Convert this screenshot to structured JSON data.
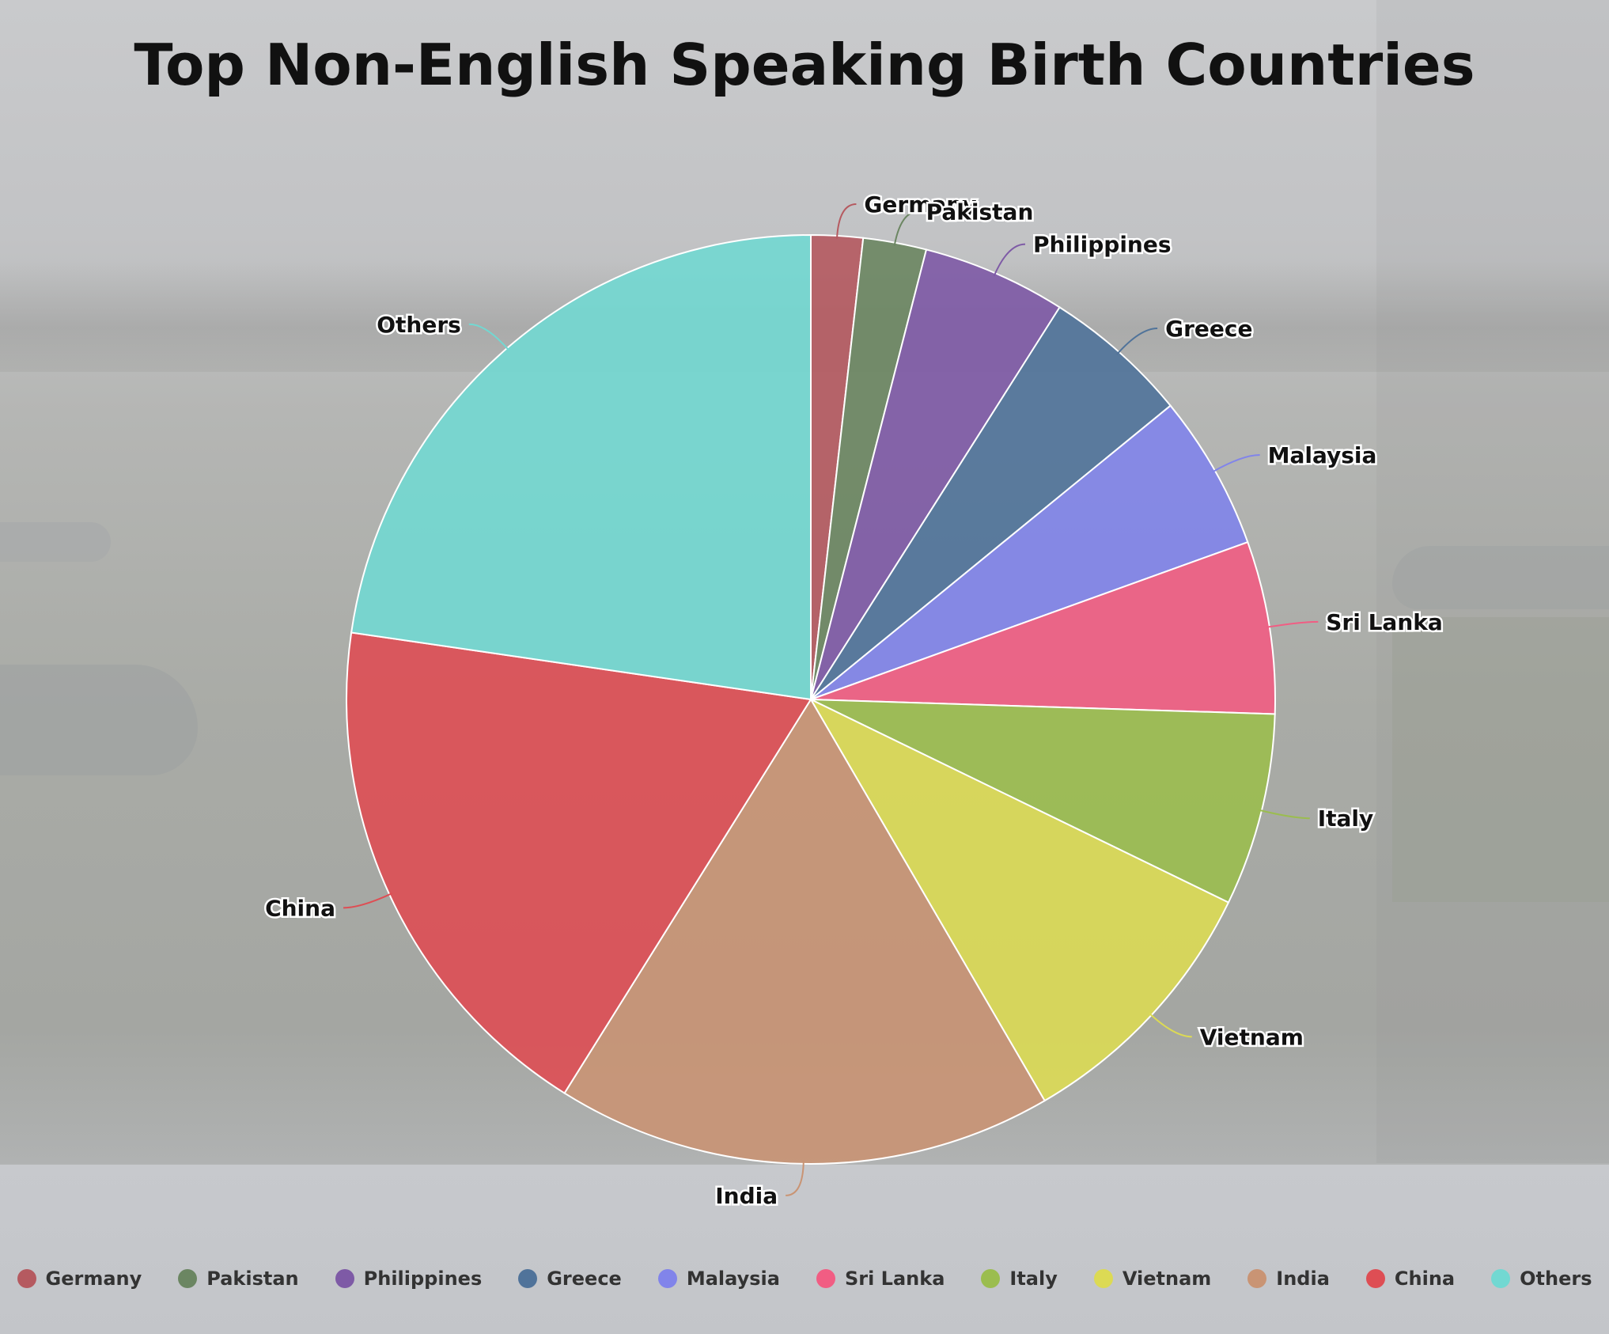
{
  "chart_data": {
    "type": "pie",
    "title": "Top Non-English Speaking Birth Countries",
    "categories": [
      "Germany",
      "Pakistan",
      "Philippines",
      "Greece",
      "Malaysia",
      "Sri Lanka",
      "Italy",
      "Vietnam",
      "India",
      "China",
      "Others"
    ],
    "values": [
      1.8,
      2.2,
      5.0,
      5.1,
      5.4,
      6.0,
      6.7,
      9.4,
      17.3,
      18.4,
      22.7
    ],
    "unit": "percent",
    "start_angle": "12 o'clock",
    "direction": "clockwise",
    "legend_position": "bottom",
    "colors": [
      "#b55a60",
      "#6b8662",
      "#7e5aa6",
      "#50739a",
      "#8184ea",
      "#f15d83",
      "#9bbd4f",
      "#dcda54",
      "#c99474",
      "#de4e54",
      "#72d8d2"
    ]
  }
}
